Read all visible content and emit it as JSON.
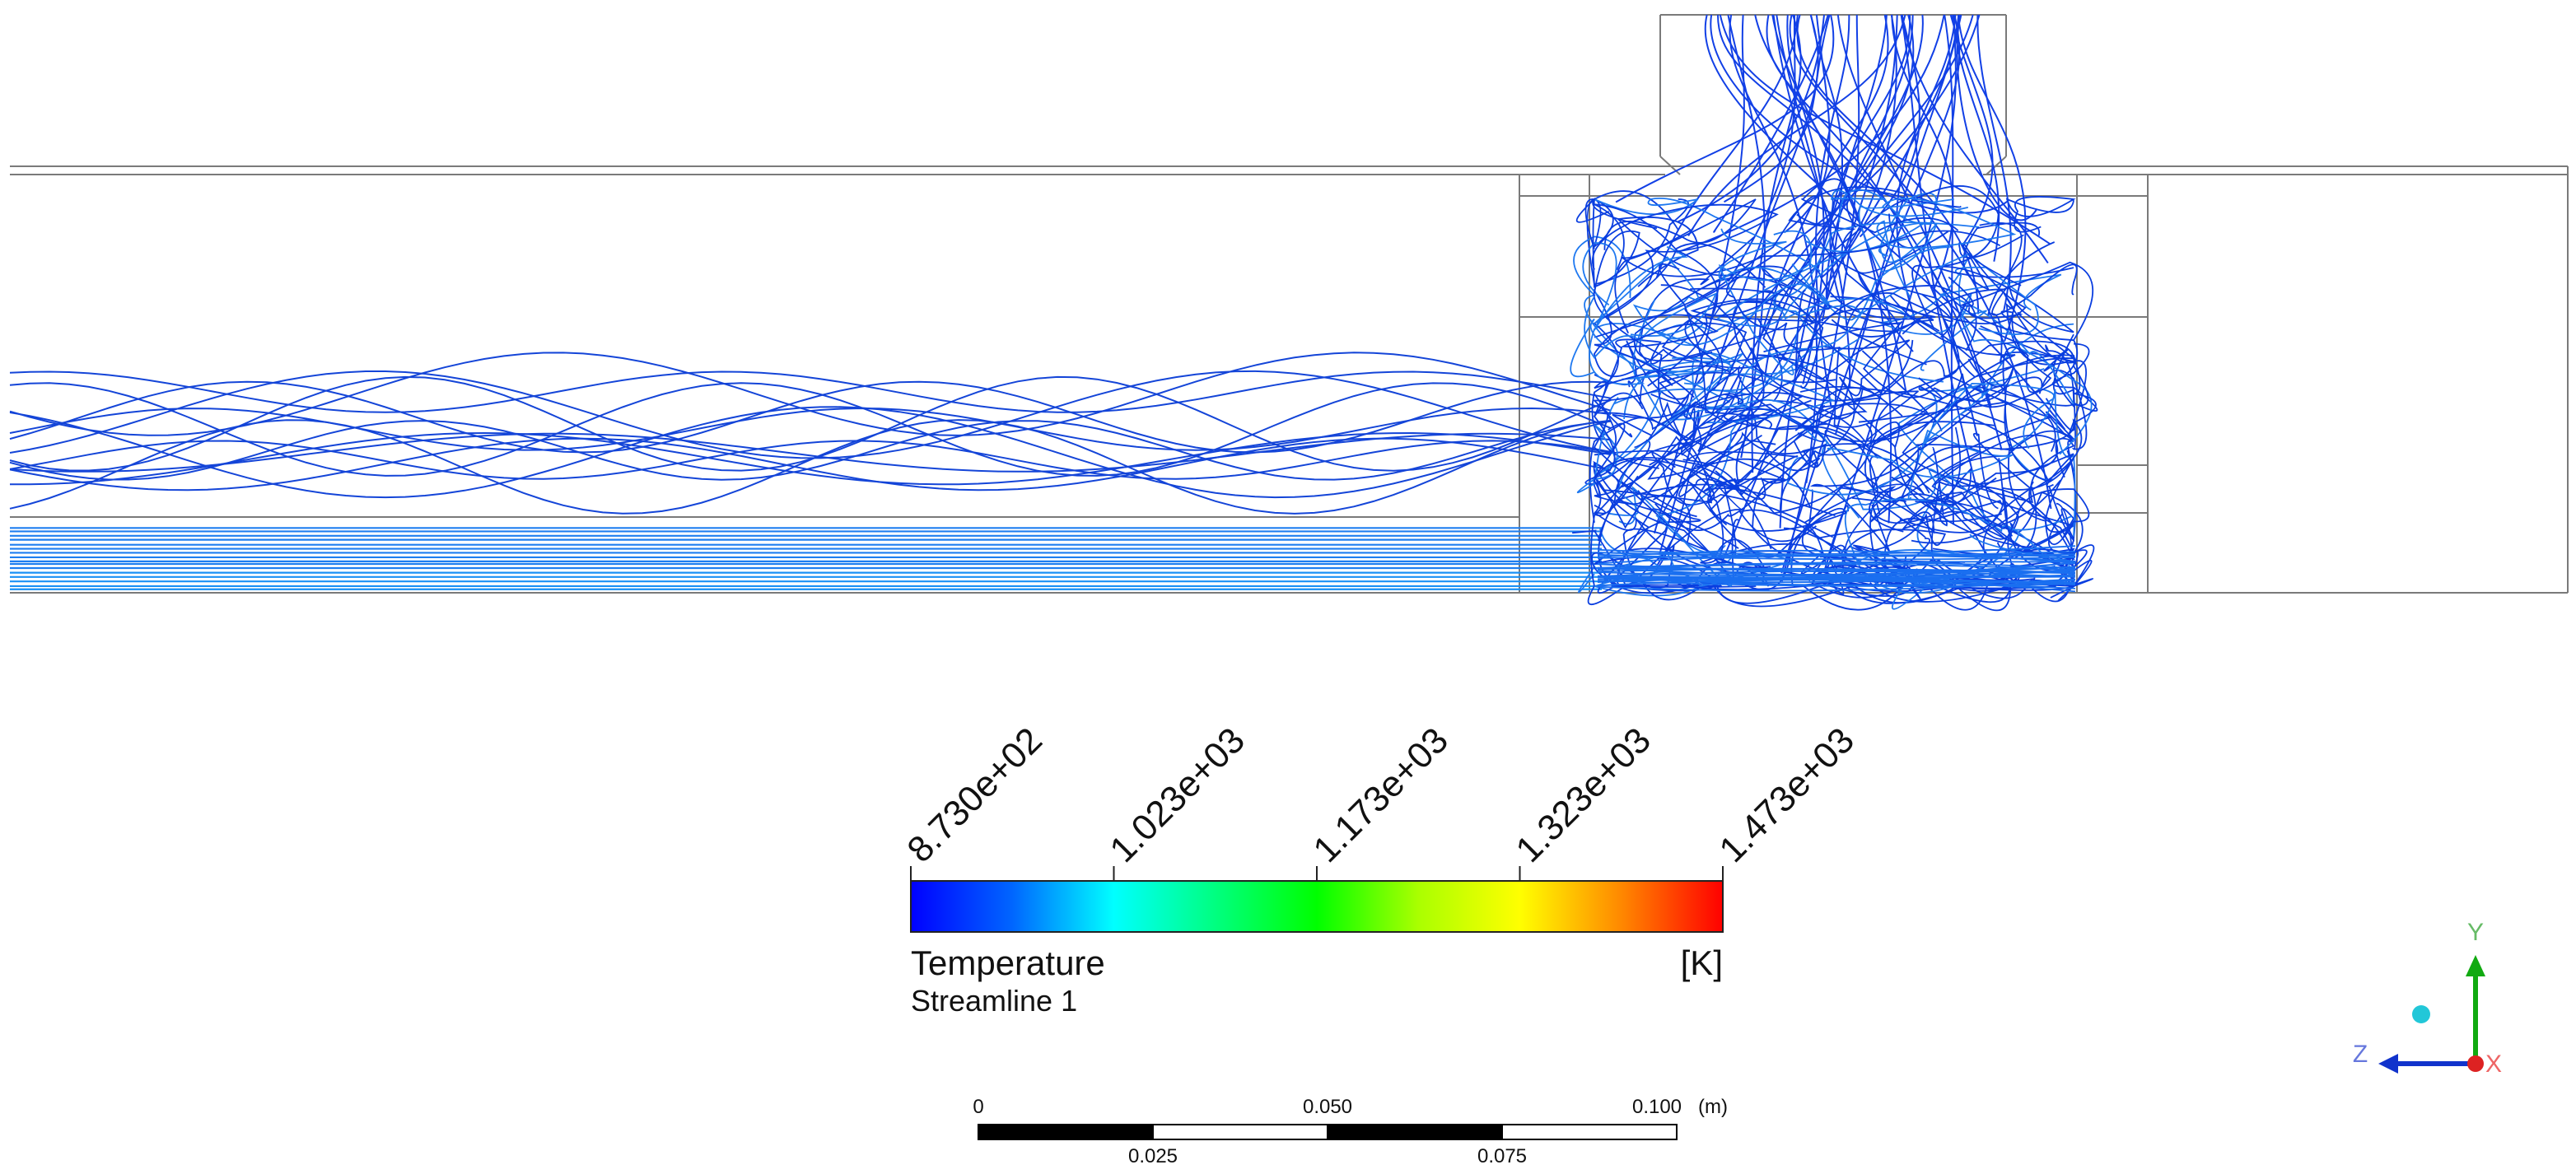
{
  "legend": {
    "ticks": [
      "8.730e+02",
      "1.023e+03",
      "1.173e+03",
      "1.323e+03",
      "1.473e+03"
    ],
    "title": "Temperature",
    "unit": "[K]",
    "subtitle": "Streamline 1",
    "gradient_colors": [
      "#0000ff",
      "#00aaff",
      "#00ffff",
      "#00ff88",
      "#00ff00",
      "#aaff00",
      "#ffff00",
      "#ff9900",
      "#ff0000"
    ]
  },
  "scale_bar": {
    "top_labels": [
      "0",
      "0.050",
      "0.100"
    ],
    "unit": "(m)",
    "bottom_labels": [
      "0.025",
      "0.075"
    ]
  },
  "axes": {
    "x_label": "X",
    "y_label": "Y",
    "z_label": "Z",
    "x_color": "#ff3030",
    "y_color": "#22aa22",
    "z_color": "#2244dd"
  },
  "streamline_colors": {
    "hot_zone": "#0a3ee0",
    "cold_inlet": "#1e7ef0"
  }
}
